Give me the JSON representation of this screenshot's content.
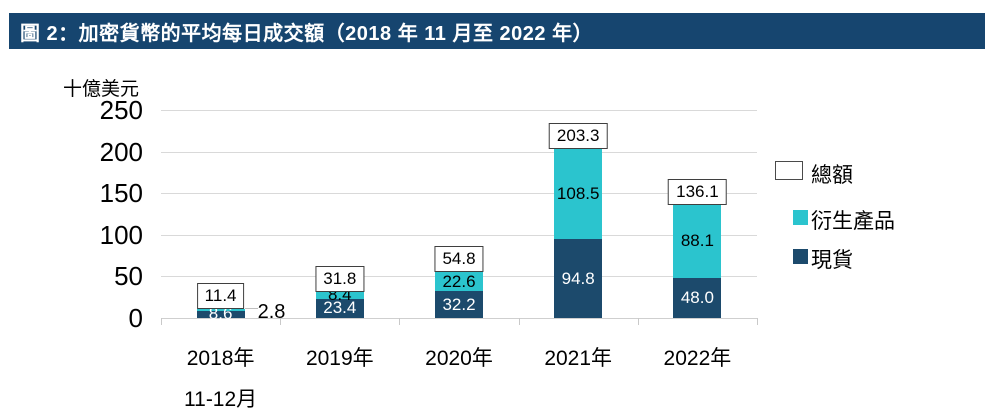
{
  "title": "圖 2：加密貨幣的平均每日成交額（2018 年 11 月至 2022 年）",
  "y_axis": {
    "unit": "十億美元",
    "ticks": [
      "250",
      "200",
      "150",
      "100",
      "50",
      "0"
    ]
  },
  "legend": {
    "items": [
      {
        "label": "總額",
        "swatch": "total-outline"
      },
      {
        "label": "衍生產品",
        "swatch": "derivatives-teal"
      },
      {
        "label": "現貨",
        "swatch": "spot-navy"
      }
    ]
  },
  "colors": {
    "banner": "#16456F",
    "spot": "#1C4A6C",
    "derivatives": "#2BC4CE",
    "grid": "#D9D9D9",
    "total_box_border": "#3f3f3f",
    "leader_line": "#BFBFBF"
  },
  "chart_data": {
    "type": "bar",
    "stacked": true,
    "title": "圖 2：加密貨幣的平均每日成交額（2018 年 11 月至 2022 年）",
    "ylabel": "十億美元",
    "ylim": [
      0,
      250
    ],
    "y_tick_step": 50,
    "grid": true,
    "legend_position": "right",
    "categories": [
      "2018年11-12月",
      "2019年",
      "2020年",
      "2021年",
      "2022年"
    ],
    "category_lines": [
      [
        "2018年",
        "11-12月"
      ],
      [
        "2019年",
        ""
      ],
      [
        "2020年",
        ""
      ],
      [
        "2021年",
        ""
      ],
      [
        "2022年",
        ""
      ]
    ],
    "series": [
      {
        "name": "現貨",
        "color": "#1C4A6C",
        "values": [
          8.6,
          23.4,
          32.2,
          94.8,
          48.0
        ],
        "labels": [
          "8.6",
          "23.4",
          "32.2",
          "94.8",
          "48.0"
        ],
        "label_color": "light",
        "label_placement": [
          "inside",
          "inside",
          "inside",
          "inside",
          "inside"
        ]
      },
      {
        "name": "衍生產品",
        "color": "#2BC4CE",
        "values": [
          2.8,
          8.4,
          22.6,
          108.5,
          88.1
        ],
        "labels": [
          "2.8",
          "8.4",
          "22.6",
          "108.5",
          "88.1"
        ],
        "label_color": "dark",
        "label_placement": [
          "callout-right",
          "inside",
          "inside",
          "inside",
          "inside"
        ]
      }
    ],
    "totals": {
      "name": "總額",
      "values": [
        11.4,
        31.8,
        54.8,
        203.3,
        136.1
      ],
      "labels": [
        "11.4",
        "31.8",
        "54.8",
        "203.3",
        "136.1"
      ]
    }
  }
}
